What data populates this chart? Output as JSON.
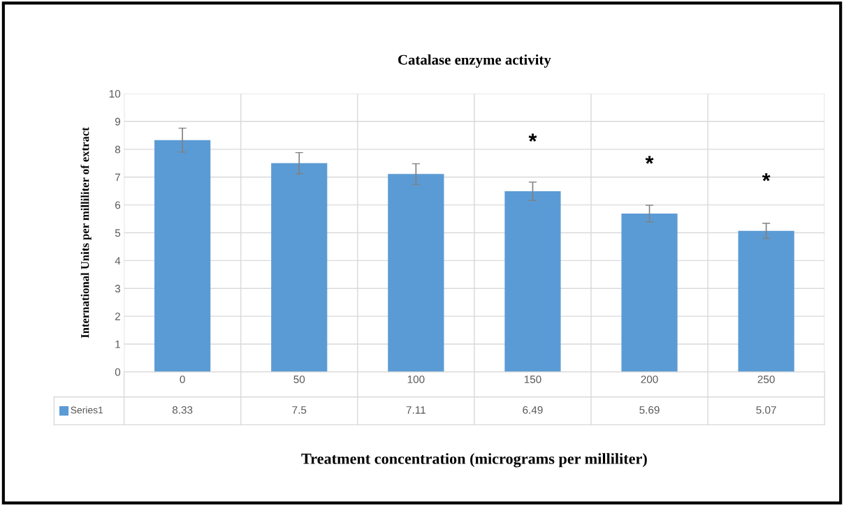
{
  "chart_data": {
    "type": "bar",
    "title": "Catalase enzyme activity",
    "xlabel": "Treatment concentration (micrograms per milliliter)",
    "ylabel": "International Units per milliliter of extract",
    "categories": [
      "0",
      "50",
      "100",
      "150",
      "200",
      "250"
    ],
    "series": [
      {
        "name": "Series1",
        "color": "#5b9bd5",
        "values": [
          8.33,
          7.5,
          7.11,
          6.49,
          5.69,
          5.07
        ],
        "errors": [
          0.43,
          0.38,
          0.37,
          0.33,
          0.3,
          0.27
        ]
      }
    ],
    "ylim": [
      0,
      10
    ],
    "yticks": [
      0,
      1,
      2,
      3,
      4,
      5,
      6,
      7,
      8,
      9,
      10
    ],
    "grid": true,
    "data_labels": true,
    "annotations": [
      {
        "text": "*",
        "x": "150",
        "y": 6.49
      },
      {
        "text": "*",
        "x": "200",
        "y": 5.69
      },
      {
        "text": "*",
        "x": "250",
        "y": 5.07
      }
    ]
  }
}
